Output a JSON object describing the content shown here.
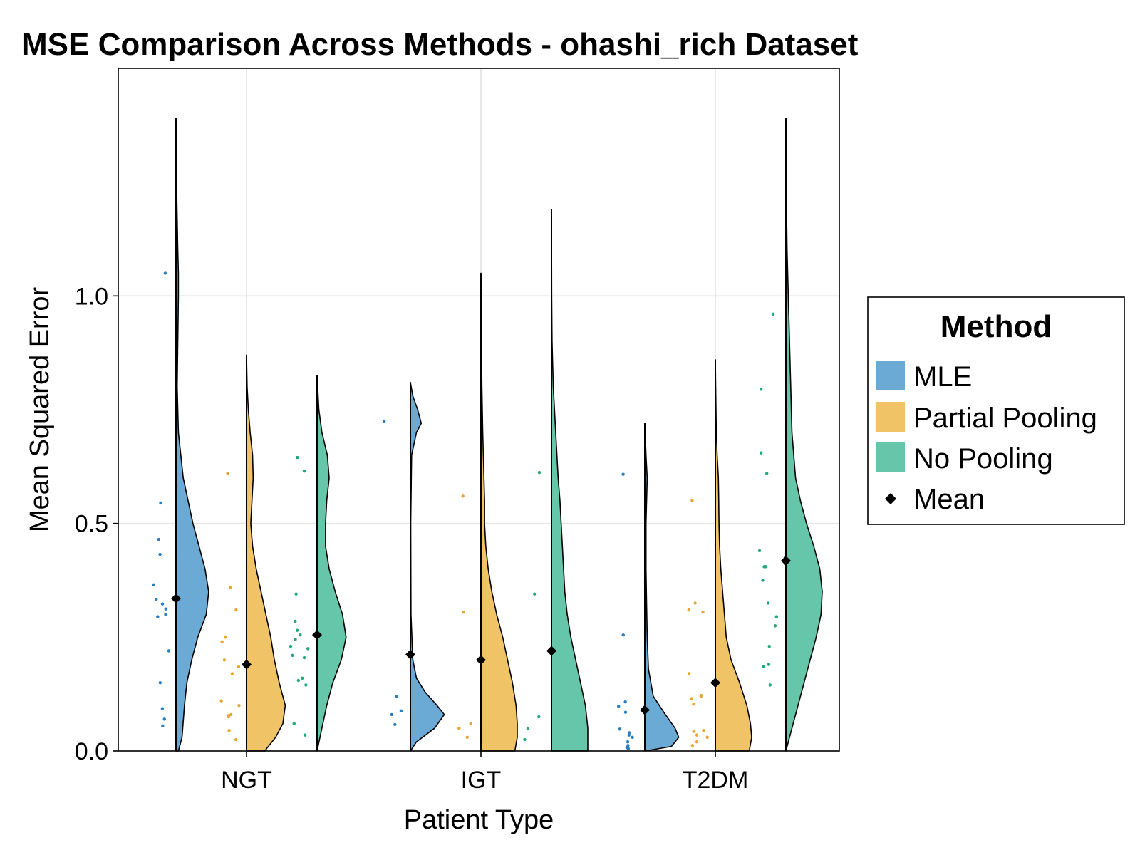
{
  "chart_data": {
    "type": "violin",
    "title": "MSE Comparison Across Methods - ohashi_rich Dataset",
    "xlabel": "Patient Type",
    "ylabel": "Mean Squared Error",
    "categories": [
      "NGT",
      "IGT",
      "T2DM"
    ],
    "y_ticks": [
      0.0,
      0.5,
      1.0
    ],
    "y_tick_labels": [
      "0.0",
      "0.5",
      "1.0"
    ],
    "ylim": [
      0.0,
      1.5
    ],
    "grid": true,
    "legend": {
      "title": "Method",
      "placement": "right",
      "mean_label": "Mean"
    },
    "series": [
      {
        "name": "MLE",
        "color": "#6aaad4",
        "point_color": "#2a7fc0",
        "groups": [
          {
            "category": "NGT",
            "max": 1.39,
            "mean": 0.335,
            "density": [
              [
                0.0,
                0.02
              ],
              [
                0.03,
                0.05
              ],
              [
                0.1,
                0.07
              ],
              [
                0.15,
                0.09
              ],
              [
                0.2,
                0.13
              ],
              [
                0.25,
                0.18
              ],
              [
                0.3,
                0.25
              ],
              [
                0.35,
                0.27
              ],
              [
                0.4,
                0.24
              ],
              [
                0.45,
                0.19
              ],
              [
                0.5,
                0.14
              ],
              [
                0.55,
                0.1
              ],
              [
                0.6,
                0.06
              ],
              [
                0.7,
                0.02
              ],
              [
                0.8,
                0.01
              ],
              [
                0.9,
                0.015
              ],
              [
                1.0,
                0.02
              ],
              [
                1.05,
                0.02
              ],
              [
                1.1,
                0.015
              ],
              [
                1.2,
                0.008
              ],
              [
                1.3,
                0.003
              ],
              [
                1.39,
                0.0
              ]
            ],
            "points": [
              1.05,
              0.545,
              0.465,
              0.432,
              0.365,
              0.333,
              0.323,
              0.312,
              0.3,
              0.295,
              0.22,
              0.15,
              0.093,
              0.07,
              0.055
            ]
          },
          {
            "category": "IGT",
            "max": 0.81,
            "mean": 0.212,
            "density": [
              [
                0.0,
                0.0
              ],
              [
                0.02,
                0.05
              ],
              [
                0.05,
                0.2
              ],
              [
                0.08,
                0.28
              ],
              [
                0.1,
                0.22
              ],
              [
                0.13,
                0.12
              ],
              [
                0.16,
                0.05
              ],
              [
                0.2,
                0.02
              ],
              [
                0.3,
                0.005
              ],
              [
                0.5,
                0.003
              ],
              [
                0.65,
                0.01
              ],
              [
                0.7,
                0.05
              ],
              [
                0.72,
                0.09
              ],
              [
                0.75,
                0.06
              ],
              [
                0.78,
                0.02
              ],
              [
                0.81,
                0.0
              ]
            ],
            "points": [
              0.725,
              0.12,
              0.088,
              0.08,
              0.058
            ]
          },
          {
            "category": "T2DM",
            "max": 0.72,
            "mean": 0.09,
            "density": [
              [
                0.0,
                0.0
              ],
              [
                0.01,
                0.22
              ],
              [
                0.03,
                0.28
              ],
              [
                0.05,
                0.25
              ],
              [
                0.08,
                0.17
              ],
              [
                0.12,
                0.07
              ],
              [
                0.18,
                0.03
              ],
              [
                0.25,
                0.02
              ],
              [
                0.32,
                0.015
              ],
              [
                0.4,
                0.01
              ],
              [
                0.5,
                0.01
              ],
              [
                0.6,
                0.02
              ],
              [
                0.65,
                0.01
              ],
              [
                0.72,
                0.0
              ]
            ],
            "points": [
              0.608,
              0.255,
              0.108,
              0.098,
              0.085,
              0.048,
              0.04,
              0.035,
              0.03,
              0.02,
              0.012,
              0.008,
              0.005
            ]
          }
        ]
      },
      {
        "name": "Partial Pooling",
        "color": "#f0c466",
        "point_color": "#e8a630",
        "groups": [
          {
            "category": "NGT",
            "max": 0.87,
            "mean": 0.19,
            "density": [
              [
                0.0,
                0.15
              ],
              [
                0.03,
                0.24
              ],
              [
                0.06,
                0.3
              ],
              [
                0.1,
                0.32
              ],
              [
                0.15,
                0.27
              ],
              [
                0.2,
                0.23
              ],
              [
                0.25,
                0.2
              ],
              [
                0.3,
                0.16
              ],
              [
                0.35,
                0.12
              ],
              [
                0.4,
                0.08
              ],
              [
                0.45,
                0.05
              ],
              [
                0.5,
                0.035
              ],
              [
                0.55,
                0.045
              ],
              [
                0.6,
                0.055
              ],
              [
                0.65,
                0.05
              ],
              [
                0.7,
                0.03
              ],
              [
                0.75,
                0.015
              ],
              [
                0.8,
                0.005
              ],
              [
                0.87,
                0.0
              ]
            ],
            "points": [
              0.61,
              0.36,
              0.31,
              0.25,
              0.24,
              0.2,
              0.185,
              0.17,
              0.11,
              0.1,
              0.08,
              0.078,
              0.075,
              0.045,
              0.025
            ]
          },
          {
            "category": "IGT",
            "max": 1.05,
            "mean": 0.2,
            "density": [
              [
                0.0,
                0.28
              ],
              [
                0.03,
                0.3
              ],
              [
                0.06,
                0.3
              ],
              [
                0.1,
                0.29
              ],
              [
                0.15,
                0.26
              ],
              [
                0.2,
                0.22
              ],
              [
                0.25,
                0.18
              ],
              [
                0.3,
                0.13
              ],
              [
                0.35,
                0.09
              ],
              [
                0.4,
                0.06
              ],
              [
                0.45,
                0.04
              ],
              [
                0.5,
                0.03
              ],
              [
                0.55,
                0.03
              ],
              [
                0.6,
                0.025
              ],
              [
                0.7,
                0.015
              ],
              [
                0.8,
                0.008
              ],
              [
                0.9,
                0.004
              ],
              [
                1.0,
                0.002
              ],
              [
                1.05,
                0.0
              ]
            ],
            "points": [
              0.56,
              0.305,
              0.06,
              0.05,
              0.03
            ]
          },
          {
            "category": "T2DM",
            "max": 0.86,
            "mean": 0.15,
            "density": [
              [
                0.0,
                0.28
              ],
              [
                0.03,
                0.3
              ],
              [
                0.06,
                0.29
              ],
              [
                0.1,
                0.26
              ],
              [
                0.15,
                0.2
              ],
              [
                0.2,
                0.13
              ],
              [
                0.25,
                0.09
              ],
              [
                0.3,
                0.075
              ],
              [
                0.35,
                0.06
              ],
              [
                0.4,
                0.045
              ],
              [
                0.45,
                0.035
              ],
              [
                0.5,
                0.03
              ],
              [
                0.55,
                0.028
              ],
              [
                0.6,
                0.025
              ],
              [
                0.65,
                0.015
              ],
              [
                0.7,
                0.008
              ],
              [
                0.8,
                0.003
              ],
              [
                0.86,
                0.0
              ]
            ],
            "points": [
              0.55,
              0.325,
              0.31,
              0.305,
              0.17,
              0.122,
              0.12,
              0.115,
              0.103,
              0.045,
              0.043,
              0.035,
              0.03,
              0.02,
              0.012
            ]
          }
        ]
      },
      {
        "name": "No Pooling",
        "color": "#66c6aa",
        "point_color": "#22a87e",
        "groups": [
          {
            "category": "NGT",
            "max": 0.825,
            "mean": 0.255,
            "density": [
              [
                0.0,
                0.0
              ],
              [
                0.05,
                0.04
              ],
              [
                0.1,
                0.08
              ],
              [
                0.15,
                0.13
              ],
              [
                0.2,
                0.2
              ],
              [
                0.25,
                0.24
              ],
              [
                0.3,
                0.21
              ],
              [
                0.35,
                0.15
              ],
              [
                0.4,
                0.1
              ],
              [
                0.45,
                0.07
              ],
              [
                0.5,
                0.07
              ],
              [
                0.55,
                0.08
              ],
              [
                0.6,
                0.1
              ],
              [
                0.65,
                0.085
              ],
              [
                0.7,
                0.04
              ],
              [
                0.75,
                0.015
              ],
              [
                0.825,
                0.0
              ]
            ],
            "points": [
              0.645,
              0.615,
              0.345,
              0.285,
              0.265,
              0.255,
              0.245,
              0.23,
              0.225,
              0.21,
              0.205,
              0.16,
              0.155,
              0.145,
              0.06,
              0.035
            ]
          },
          {
            "category": "IGT",
            "max": 1.19,
            "mean": 0.22,
            "density": [
              [
                0.0,
                0.3
              ],
              [
                0.05,
                0.3
              ],
              [
                0.1,
                0.28
              ],
              [
                0.15,
                0.24
              ],
              [
                0.2,
                0.2
              ],
              [
                0.25,
                0.16
              ],
              [
                0.3,
                0.13
              ],
              [
                0.35,
                0.11
              ],
              [
                0.4,
                0.1
              ],
              [
                0.45,
                0.09
              ],
              [
                0.5,
                0.08
              ],
              [
                0.55,
                0.07
              ],
              [
                0.6,
                0.055
              ],
              [
                0.7,
                0.035
              ],
              [
                0.8,
                0.015
              ],
              [
                0.9,
                0.005
              ],
              [
                1.0,
                0.002
              ],
              [
                1.19,
                0.0
              ]
            ],
            "points": [
              0.612,
              0.345,
              0.075,
              0.05,
              0.025
            ]
          },
          {
            "category": "T2DM",
            "max": 1.39,
            "mean": 0.418,
            "density": [
              [
                0.0,
                0.0
              ],
              [
                0.05,
                0.05
              ],
              [
                0.1,
                0.1
              ],
              [
                0.15,
                0.15
              ],
              [
                0.2,
                0.2
              ],
              [
                0.25,
                0.25
              ],
              [
                0.3,
                0.29
              ],
              [
                0.35,
                0.3
              ],
              [
                0.4,
                0.28
              ],
              [
                0.45,
                0.23
              ],
              [
                0.5,
                0.17
              ],
              [
                0.55,
                0.12
              ],
              [
                0.6,
                0.08
              ],
              [
                0.7,
                0.05
              ],
              [
                0.8,
                0.04
              ],
              [
                0.9,
                0.03
              ],
              [
                1.0,
                0.02
              ],
              [
                1.1,
                0.01
              ],
              [
                1.2,
                0.005
              ],
              [
                1.39,
                0.0
              ]
            ],
            "points": [
              0.96,
              0.795,
              0.655,
              0.61,
              0.44,
              0.405,
              0.405,
              0.375,
              0.325,
              0.295,
              0.275,
              0.23,
              0.19,
              0.185,
              0.145
            ]
          }
        ]
      }
    ]
  }
}
